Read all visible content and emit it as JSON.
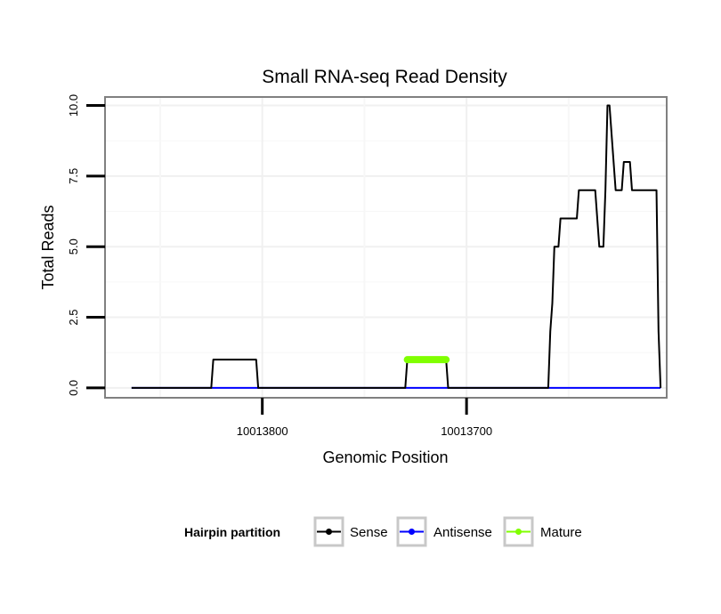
{
  "chart_data": {
    "type": "line",
    "title": "Small RNA-seq Read Density",
    "xlabel": "Genomic Position",
    "ylabel": "Total Reads",
    "x_reversed": true,
    "xlim": [
      10013877,
      10013602
    ],
    "ylim": [
      -0.35,
      10.3
    ],
    "x_ticks": [
      10013800,
      10013700
    ],
    "x_tick_labels": [
      "10013800",
      "10013700"
    ],
    "y_ticks": [
      0,
      2.5,
      5,
      7.5,
      10
    ],
    "y_tick_labels": [
      "0.0",
      "2.5",
      "5.0",
      "7.5",
      "10.0"
    ],
    "grid": true,
    "legend": {
      "title": "Hairpin partition",
      "position": "bottom",
      "entries": [
        {
          "name": "Sense",
          "color": "#000000"
        },
        {
          "name": "Antisense",
          "color": "#0000ff"
        },
        {
          "name": "Mature",
          "color": "#80ff00"
        }
      ]
    },
    "series": [
      {
        "name": "Sense",
        "color": "#000000",
        "x": [
          10013864,
          10013825,
          10013824,
          10013803,
          10013802,
          10013730,
          10013729,
          10013710,
          10013709,
          10013660,
          10013659,
          10013658,
          10013657,
          10013655,
          10013654,
          10013652,
          10013651,
          10013646,
          10013645,
          10013638,
          10013637,
          10013635,
          10013633,
          10013632,
          10013631,
          10013630,
          10013628,
          10013627,
          10013624,
          10013623,
          10013620,
          10013619,
          10013608,
          10013607,
          10013606,
          10013605
        ],
        "y": [
          0,
          0,
          1,
          1,
          0,
          0,
          1,
          1,
          0,
          0,
          2,
          3,
          5,
          5,
          6,
          6,
          6,
          6,
          7,
          7,
          7,
          5,
          5,
          7,
          10,
          10,
          8,
          7,
          7,
          8,
          8,
          7,
          7,
          7,
          2,
          0
        ]
      },
      {
        "name": "Antisense",
        "color": "#0000ff",
        "x": [
          10013864,
          10013605
        ],
        "y": [
          0,
          0
        ]
      },
      {
        "name": "Mature",
        "color": "#80ff00",
        "x": [
          10013729,
          10013710
        ],
        "y": [
          1,
          1
        ]
      }
    ]
  }
}
